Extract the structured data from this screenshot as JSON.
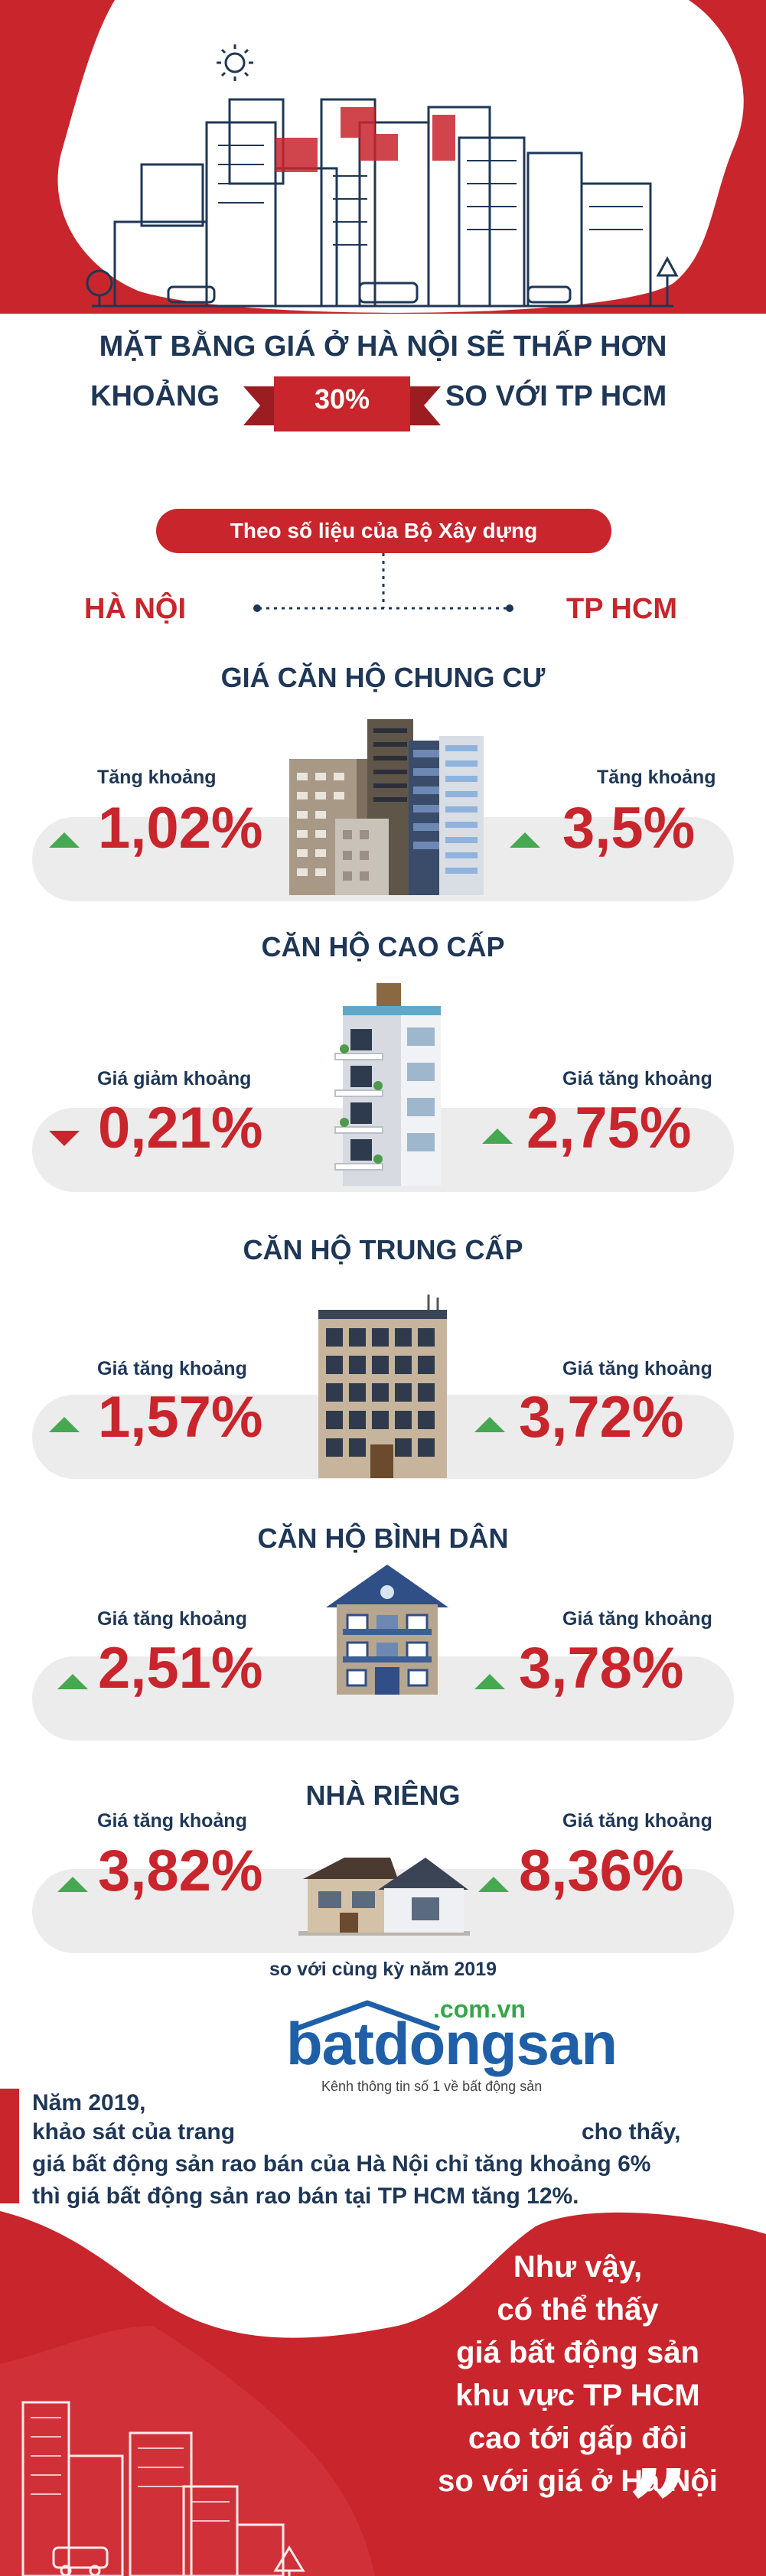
{
  "colors": {
    "red": "#c8252c",
    "navy": "#1f3756",
    "green": "#46a851",
    "band": "#ececec"
  },
  "headline": {
    "line1": "MẶT BẰNG GIÁ Ở HÀ NỘI SẼ THẤP HƠN",
    "line2_left": "KHOẢNG",
    "highlight": "30%",
    "line2_right": "SO VỚI TP HCM"
  },
  "source": "Theo số liệu của Bộ Xây dựng",
  "cities": {
    "left": "HÀ NỘI",
    "right": "TP HCM"
  },
  "sections": [
    {
      "title": "GIÁ CĂN HỘ CHUNG CƯ",
      "left_label": "Tăng khoảng",
      "left_value": "1,02%",
      "left_trend": "up",
      "right_label": "Tăng khoảng",
      "right_value": "3,5%",
      "right_trend": "up",
      "icon": "apartment-complex-icon"
    },
    {
      "title": "CĂN HỘ CAO CẤP",
      "left_label": "Giá giảm khoảng",
      "left_value": "0,21%",
      "left_trend": "down",
      "right_label": "Giá tăng khoảng",
      "right_value": "2,75%",
      "right_trend": "up",
      "icon": "luxury-tower-icon"
    },
    {
      "title": "CĂN HỘ TRUNG CẤP",
      "left_label": "Giá tăng khoảng",
      "left_value": "1,57%",
      "left_trend": "up",
      "right_label": "Giá tăng khoảng",
      "right_value": "3,72%",
      "right_trend": "up",
      "icon": "midrise-building-icon"
    },
    {
      "title": "CĂN HỘ BÌNH DÂN",
      "left_label": "Giá tăng khoảng",
      "left_value": "2,51%",
      "left_trend": "up",
      "right_label": "Giá tăng khoảng",
      "right_value": "3,78%",
      "right_trend": "up",
      "icon": "affordable-building-icon"
    },
    {
      "title": "NHÀ RIÊNG",
      "left_label": "Giá tăng khoảng",
      "left_value": "3,82%",
      "left_trend": "up",
      "right_label": "Giá tăng khoảng",
      "right_value": "8,36%",
      "right_trend": "up",
      "icon": "house-icon"
    }
  ],
  "footnote": "so với cùng kỳ năm 2019",
  "logo": {
    "domain": ".com.vn",
    "name": "batdongsan",
    "tagline": "Kênh thông tin số 1 về bất động sản"
  },
  "paragraph": {
    "line1": "Năm 2019,",
    "line2a": "khảo sát của trang",
    "line2b": "cho thấy,",
    "line3": "giá bất động sản rao bán của Hà Nội chỉ tăng khoảng 6%",
    "line4": "thì giá bất động sản rao bán tại TP HCM tăng 12%."
  },
  "quote": {
    "open_mark": "“",
    "close_mark": "”",
    "lines": [
      "Như vậy,",
      "có thể thấy",
      "giá bất động sản",
      "khu vực TP HCM",
      "cao tới gấp đôi",
      "so với giá ở Hà Nội"
    ]
  }
}
